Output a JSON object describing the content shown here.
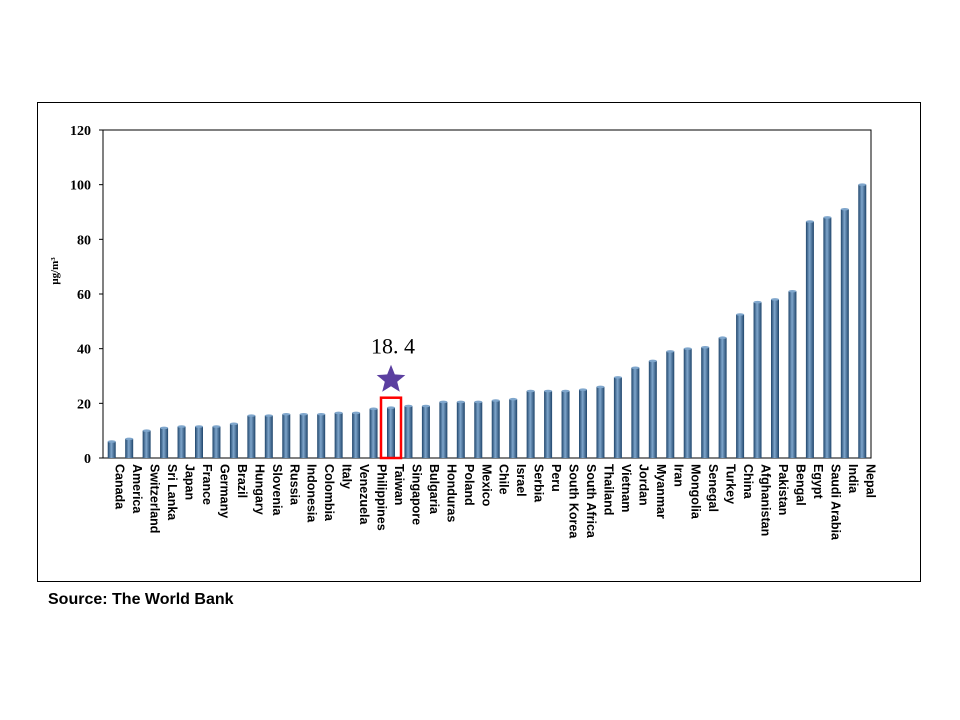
{
  "source_note": "Source: The World Bank",
  "chart_data": {
    "type": "bar",
    "ylabel": "μg/m³",
    "ylim": [
      0,
      120
    ],
    "yticks": [
      0,
      20,
      40,
      60,
      80,
      100,
      120
    ],
    "highlight_category": "Taiwan",
    "annotation": "18. 4",
    "colors": {
      "bar": "#3c6e9e",
      "bar_light": "#7fa6cc",
      "bar_dark": "#1f456b",
      "highlight_label": "#ff0000",
      "highlight_box": "#ff0000",
      "star": "#5b3fa0"
    },
    "categories": [
      "Canada",
      "America",
      "Switzerland",
      "Sri Lanka",
      "Japan",
      "France",
      "Germany",
      "Brazil",
      "Hungary",
      "Slovenia",
      "Russia",
      "Indonesia",
      "Colombia",
      "Italy",
      "Venezuela",
      "Philippines",
      "Taiwan",
      "Singapore",
      "Bulgaria",
      "Honduras",
      "Poland",
      "Mexico",
      "Chile",
      "Israel",
      "Serbia",
      "Peru",
      "South Korea",
      "South Africa",
      "Thailand",
      "Vietnam",
      "Jordan",
      "Myanmar",
      "Iran",
      "Mongolia",
      "Senegal",
      "Turkey",
      "China",
      "Afghanistan",
      "Pakistan",
      "Bengal",
      "Egypt",
      "Saudi Arabia",
      "India",
      "Nepal"
    ],
    "values": [
      6,
      7,
      10,
      11,
      11.5,
      11.5,
      11.5,
      12.5,
      15.5,
      15.5,
      16,
      16,
      16,
      16.5,
      16.5,
      18,
      18.4,
      19,
      19,
      20.5,
      20.5,
      20.5,
      21,
      21.5,
      24.5,
      24.5,
      24.5,
      25,
      26,
      29.5,
      33,
      35.5,
      39,
      40,
      40.5,
      44,
      52.5,
      57,
      58,
      61,
      86.5,
      88,
      91,
      100
    ]
  }
}
